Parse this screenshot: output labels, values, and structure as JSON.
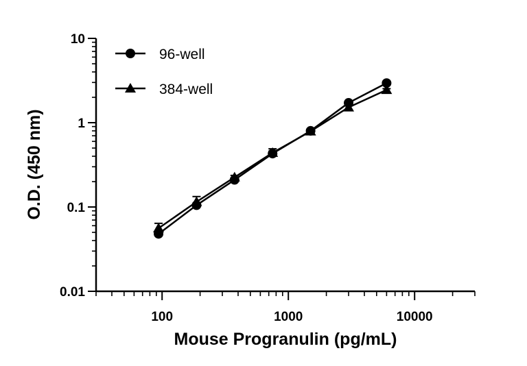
{
  "chart_data": {
    "type": "line",
    "xscale": "log",
    "yscale": "log",
    "xlabel": "Mouse Progranulin (pg/mL)",
    "ylabel": "O.D. (450 nm)",
    "xlim": [
      30,
      30000
    ],
    "ylim": [
      0.01,
      10
    ],
    "x_ticks": [
      100,
      1000,
      10000
    ],
    "x_tick_labels": [
      "100",
      "1000",
      "10000"
    ],
    "y_ticks": [
      0.01,
      0.1,
      1,
      10
    ],
    "y_tick_labels": [
      "0.01",
      "0.1",
      "1",
      "10"
    ],
    "legend_position": "top-left",
    "series": [
      {
        "name": "96-well",
        "marker": "circle",
        "x": [
          93.75,
          187.5,
          375,
          750,
          1500,
          3000,
          6000
        ],
        "y": [
          0.048,
          0.105,
          0.21,
          0.43,
          0.8,
          1.72,
          2.95
        ],
        "err": [
          0.004,
          0.006,
          0.01,
          0.03,
          0.04,
          0.08,
          0.1
        ]
      },
      {
        "name": "384-well",
        "marker": "triangle",
        "x": [
          93.75,
          187.5,
          375,
          750,
          1500,
          3000,
          6000
        ],
        "y": [
          0.056,
          0.115,
          0.225,
          0.44,
          0.79,
          1.52,
          2.45
        ],
        "err": [
          0.008,
          0.018,
          0.012,
          0.05,
          0.05,
          0.06,
          0.08
        ]
      }
    ]
  }
}
